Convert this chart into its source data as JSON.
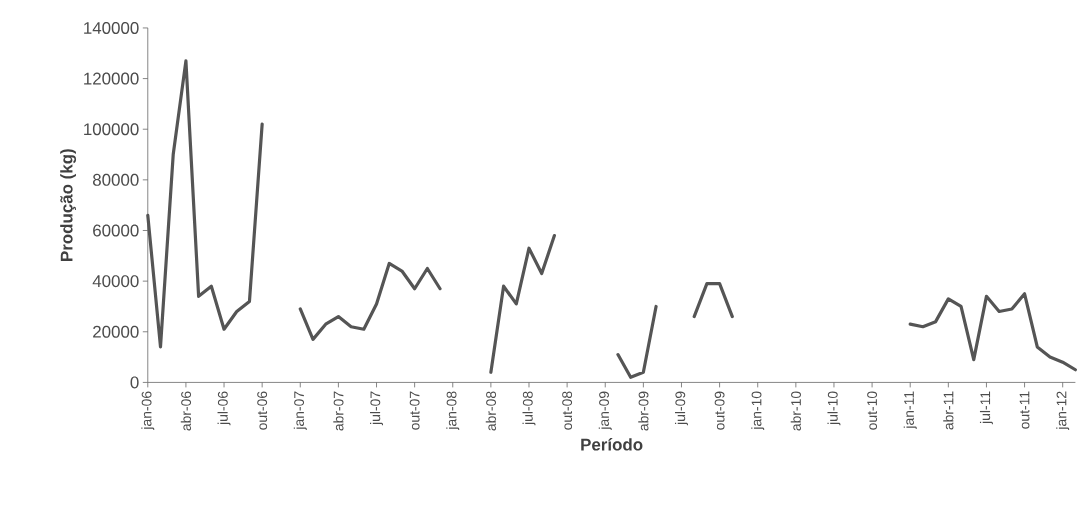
{
  "chart_data": {
    "type": "line",
    "xlabel": "Período",
    "ylabel": "Produção (kg)",
    "categories": [
      "jan-06",
      null,
      null,
      "abr-06",
      null,
      null,
      "jul-06",
      null,
      null,
      "out-06",
      null,
      null,
      "jan-07",
      null,
      null,
      "abr-07",
      null,
      null,
      "jul-07",
      null,
      null,
      "out-07",
      null,
      null,
      "jan-08",
      null,
      null,
      "abr-08",
      null,
      null,
      "jul-08",
      null,
      null,
      "out-08",
      null,
      null,
      "jan-09",
      null,
      null,
      "abr-09",
      null,
      null,
      "jul-09",
      null,
      null,
      "out-09",
      null,
      null,
      "jan-10",
      null,
      null,
      "abr-10",
      null,
      null,
      "jul-10",
      null,
      null,
      "out-10",
      null,
      null,
      "jan-11",
      null,
      null,
      "abr-11",
      null,
      null,
      "jul-11",
      null,
      null,
      "out-11",
      null,
      null,
      "jan-12",
      null
    ],
    "values": [
      66000,
      14000,
      90000,
      127000,
      34000,
      38000,
      21000,
      28000,
      32000,
      102000,
      null,
      null,
      29000,
      17000,
      23000,
      26000,
      22000,
      21000,
      31000,
      47000,
      44000,
      37000,
      45000,
      37000,
      null,
      null,
      null,
      4000,
      38000,
      31000,
      53000,
      43000,
      58000,
      null,
      null,
      null,
      null,
      11000,
      2000,
      4000,
      30000,
      null,
      null,
      26000,
      39000,
      39000,
      26000,
      null,
      null,
      null,
      null,
      null,
      null,
      null,
      null,
      null,
      null,
      null,
      null,
      null,
      23000,
      22000,
      24000,
      33000,
      30000,
      9000,
      34000,
      28000,
      29000,
      35000,
      14000,
      10000,
      8000,
      5000
    ],
    "color": "#555555",
    "line_style": "solid",
    "marker": "none",
    "grid": false,
    "ylim": [
      0,
      140000
    ],
    "yticks": [
      0,
      20000,
      40000,
      60000,
      80000,
      100000,
      120000,
      140000
    ]
  }
}
